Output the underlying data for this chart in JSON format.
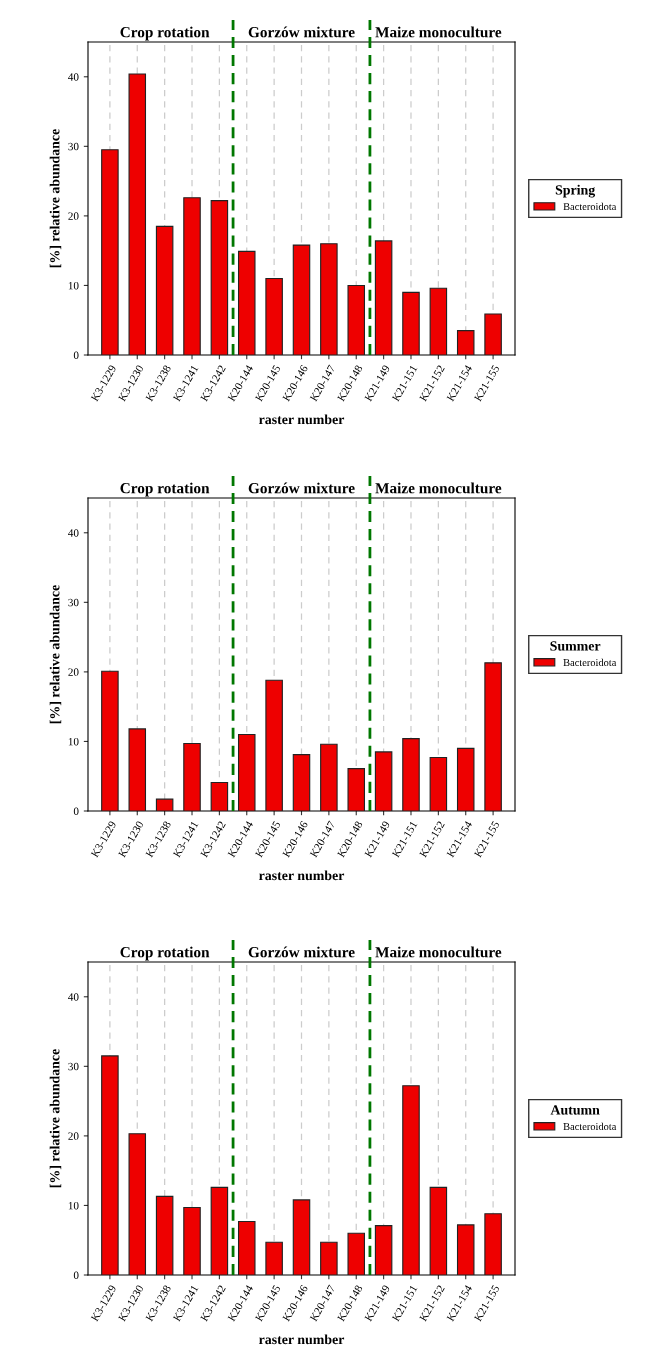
{
  "chart_data": [
    {
      "type": "bar",
      "legend_title": "Spring",
      "xlabel": "raster number",
      "ylabel": "[%] relative abundance",
      "categories": [
        "K3-1229",
        "K3-1230",
        "K3-1238",
        "K3-1241",
        "K3-1242",
        "K20-144",
        "K20-145",
        "K20-146",
        "K20-147",
        "K20-148",
        "K21-149",
        "K21-151",
        "K21-152",
        "K21-154",
        "K21-155"
      ],
      "series": [
        {
          "name": "Bacteroidota",
          "color": "#ee0000",
          "values": [
            29.5,
            40.4,
            18.5,
            22.6,
            22.2,
            14.9,
            11.0,
            15.8,
            16.0,
            10.0,
            16.4,
            9.0,
            9.6,
            3.5,
            5.9
          ]
        }
      ],
      "ylim": [
        0,
        45
      ],
      "yticks": [
        0,
        10,
        20,
        30,
        40
      ],
      "grid": "x",
      "legend": "right",
      "annotations": [
        "Crop rotation",
        "Gorzów mixture",
        "Maize monoculture"
      ]
    },
    {
      "type": "bar",
      "legend_title": "Summer",
      "xlabel": "raster number",
      "ylabel": "[%] relative abundance",
      "categories": [
        "K3-1229",
        "K3-1230",
        "K3-1238",
        "K3-1241",
        "K3-1242",
        "K20-144",
        "K20-145",
        "K20-146",
        "K20-147",
        "K20-148",
        "K21-149",
        "K21-151",
        "K21-152",
        "K21-154",
        "K21-155"
      ],
      "series": [
        {
          "name": "Bacteroidota",
          "color": "#ee0000",
          "values": [
            20.1,
            11.8,
            1.7,
            9.7,
            4.1,
            11.0,
            18.8,
            8.1,
            9.6,
            6.1,
            8.5,
            10.4,
            7.7,
            9.0,
            21.3
          ]
        }
      ],
      "ylim": [
        0,
        45
      ],
      "yticks": [
        0,
        10,
        20,
        30,
        40
      ],
      "grid": "x",
      "legend": "right",
      "annotations": [
        "Crop rotation",
        "Gorzów mixture",
        "Maize monoculture"
      ]
    },
    {
      "type": "bar",
      "legend_title": "Autumn",
      "xlabel": "raster number",
      "ylabel": "[%] relative abundance",
      "categories": [
        "K3-1229",
        "K3-1230",
        "K3-1238",
        "K3-1241",
        "K3-1242",
        "K20-144",
        "K20-145",
        "K20-146",
        "K20-147",
        "K20-148",
        "K21-149",
        "K21-151",
        "K21-152",
        "K21-154",
        "K21-155"
      ],
      "series": [
        {
          "name": "Bacteroidota",
          "color": "#ee0000",
          "values": [
            31.5,
            20.3,
            11.3,
            9.7,
            12.6,
            7.7,
            4.7,
            10.8,
            4.7,
            6.0,
            7.1,
            27.2,
            12.6,
            7.2,
            8.8
          ]
        }
      ],
      "ylim": [
        0,
        45
      ],
      "yticks": [
        0,
        10,
        20,
        30,
        40
      ],
      "grid": "x",
      "legend": "right",
      "annotations": [
        "Crop rotation",
        "Gorzów mixture",
        "Maize monoculture"
      ]
    }
  ]
}
